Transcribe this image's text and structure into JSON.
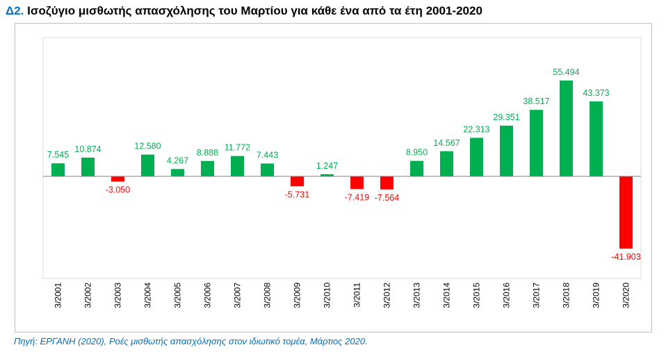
{
  "title": {
    "prefix": "Δ2.",
    "text": "Ισοζύγιο μισθωτής απασχόλησης του Μαρτίου για κάθε ένα από τα έτη 2001-2020"
  },
  "source": "Πηγή: ΕΡΓΑΝΗ (2020), Ροές μισθωτής απασχόλησης στον ιδιωτικό τομέα, Μάρτιος 2020.",
  "chart_data": {
    "type": "bar",
    "categories": [
      "3/2001",
      "3/2002",
      "3/2003",
      "3/2004",
      "3/2005",
      "3/2006",
      "3/2007",
      "3/2008",
      "3/2009",
      "3/2010",
      "3/2011",
      "3/2012",
      "3/2013",
      "3/2014",
      "3/2015",
      "3/2016",
      "3/2017",
      "3/2018",
      "3/2019",
      "3/2020"
    ],
    "values": [
      7545,
      10874,
      -3050,
      12580,
      4267,
      8888,
      11772,
      7443,
      -5731,
      1247,
      -7419,
      -7564,
      8950,
      14567,
      22313,
      29351,
      38517,
      55494,
      43373,
      -41903
    ],
    "data_labels": [
      "7.545",
      "10.874",
      "-3.050",
      "12.580",
      "4.267",
      "8.888",
      "11.772",
      "7.443",
      "-5.731",
      "1.247",
      "-7.419",
      "-7.564",
      "8.950",
      "14.567",
      "22.313",
      "29.351",
      "38.517",
      "55.494",
      "43.373",
      "-41.903"
    ],
    "colors": {
      "positive": "#00B050",
      "negative": "#FF0000",
      "axis": "#808080"
    },
    "grid": false,
    "legend": "none"
  }
}
